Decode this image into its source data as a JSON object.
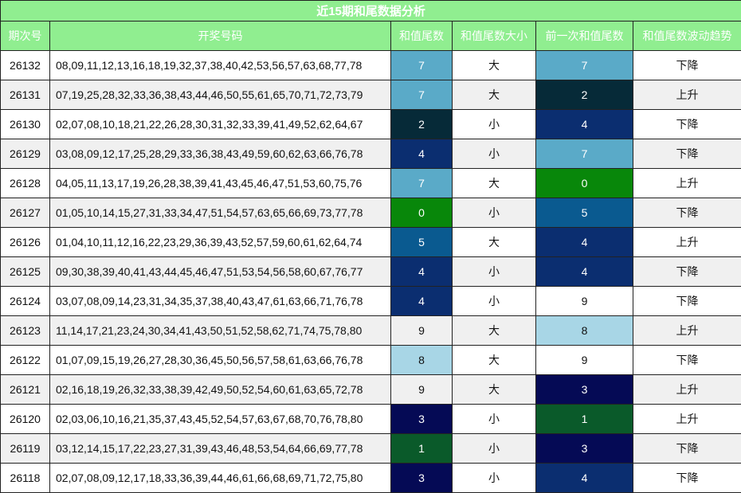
{
  "title": "近15期和尾数据分析",
  "table": {
    "headers": [
      "期次号",
      "开奖号码",
      "和值尾数",
      "和值尾数大小",
      "前一次和值尾数",
      "和值尾数波动趋势"
    ],
    "rows": [
      [
        "26132",
        "08,09,11,12,13,16,18,19,32,37,38,40,42,53,56,57,63,68,77,78",
        "7",
        "大",
        "7",
        "下降"
      ],
      [
        "26131",
        "07,19,25,28,32,33,36,38,43,44,46,50,55,61,65,70,71,72,73,79",
        "7",
        "大",
        "2",
        "上升"
      ],
      [
        "26130",
        "02,07,08,10,18,21,22,26,28,30,31,32,33,39,41,49,52,62,64,67",
        "2",
        "小",
        "4",
        "下降"
      ],
      [
        "26129",
        "03,08,09,12,17,25,28,29,33,36,38,43,49,59,60,62,63,66,76,78",
        "4",
        "小",
        "7",
        "下降"
      ],
      [
        "26128",
        "04,05,11,13,17,19,26,28,38,39,41,43,45,46,47,51,53,60,75,76",
        "7",
        "大",
        "0",
        "上升"
      ],
      [
        "26127",
        "01,05,10,14,15,27,31,33,34,47,51,54,57,63,65,66,69,73,77,78",
        "0",
        "小",
        "5",
        "下降"
      ],
      [
        "26126",
        "01,04,10,11,12,16,22,23,29,36,39,43,52,57,59,60,61,62,64,74",
        "5",
        "大",
        "4",
        "上升"
      ],
      [
        "26125",
        "09,30,38,39,40,41,43,44,45,46,47,51,53,54,56,58,60,67,76,77",
        "4",
        "小",
        "4",
        "下降"
      ],
      [
        "26124",
        "03,07,08,09,14,23,31,34,35,37,38,40,43,47,61,63,66,71,76,78",
        "4",
        "小",
        "9",
        "下降"
      ],
      [
        "26123",
        "11,14,17,21,23,24,30,34,41,43,50,51,52,58,62,71,74,75,78,80",
        "9",
        "大",
        "8",
        "上升"
      ],
      [
        "26122",
        "01,07,09,15,19,26,27,28,30,36,45,50,56,57,58,61,63,66,76,78",
        "8",
        "大",
        "9",
        "下降"
      ],
      [
        "26121",
        "02,16,18,19,26,32,33,38,39,42,49,50,52,54,60,61,63,65,72,78",
        "9",
        "大",
        "3",
        "上升"
      ],
      [
        "26120",
        "02,03,06,10,16,21,35,37,43,45,52,54,57,63,67,68,70,76,78,80",
        "3",
        "小",
        "1",
        "上升"
      ],
      [
        "26119",
        "03,12,14,15,17,22,23,27,31,39,43,46,48,53,54,64,66,69,77,78",
        "1",
        "小",
        "3",
        "下降"
      ],
      [
        "26118",
        "02,07,08,09,12,17,18,33,36,39,44,46,61,66,68,69,71,72,75,80",
        "3",
        "小",
        "4",
        "下降"
      ]
    ],
    "tail_colors": {
      "0": "#08870a",
      "1": "#0a5a2a",
      "2": "#062a38",
      "3": "#050a55",
      "4": "#0b2e70",
      "5": "#0a5a90",
      "7": "#5aaac8",
      "8": "#a8d6e6"
    }
  }
}
